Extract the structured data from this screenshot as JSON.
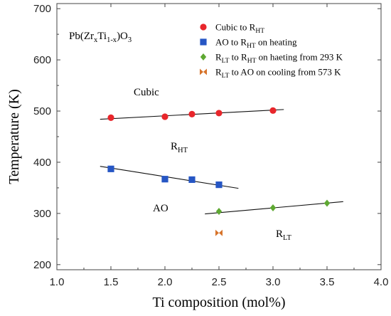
{
  "chart_data": {
    "type": "scatter",
    "title": "",
    "xlabel": "Ti composition (mol%)",
    "ylabel": "Temperature (K)",
    "xlim": [
      1.0,
      4.0
    ],
    "ylim": [
      190,
      710
    ],
    "x_ticks": [
      1.0,
      1.5,
      2.0,
      2.5,
      3.0,
      3.5,
      4.0
    ],
    "x_tick_labels": [
      "1.0",
      "1.5",
      "2.0",
      "2.5",
      "3.0",
      "3.5",
      "4.0"
    ],
    "y_ticks": [
      200,
      300,
      400,
      500,
      600,
      700
    ],
    "y_tick_labels": [
      "200",
      "300",
      "400",
      "500",
      "600",
      "700"
    ],
    "grid": false,
    "legend_position": "top-right",
    "series": [
      {
        "name": "Cubic to R_HT",
        "marker": "circle",
        "color": "#e8262b",
        "x": [
          1.5,
          2.0,
          2.25,
          2.5,
          3.0
        ],
        "y": [
          487,
          489,
          494,
          496,
          501
        ]
      },
      {
        "name": "AO to R_HT on heating",
        "marker": "square",
        "color": "#2656c4",
        "x": [
          1.5,
          2.0,
          2.25,
          2.5
        ],
        "y": [
          387,
          367,
          366,
          356
        ]
      },
      {
        "name": "R_LT to R_HT on haeting from 293 K",
        "marker": "diamond",
        "color": "#5ea832",
        "x": [
          2.5,
          3.0,
          3.5
        ],
        "y": [
          304,
          311,
          320
        ]
      },
      {
        "name": "R_LT to AO on cooling from 573 K",
        "marker": "bowtie",
        "color": "#d7742b",
        "x": [
          2.5
        ],
        "y": [
          262
        ]
      }
    ],
    "fit_lines": [
      {
        "x": [
          1.4,
          3.1
        ],
        "y": [
          484,
          503
        ]
      },
      {
        "x": [
          1.4,
          2.68
        ],
        "y": [
          392,
          349
        ]
      },
      {
        "x": [
          2.37,
          3.65
        ],
        "y": [
          299,
          323
        ]
      }
    ],
    "legend": [
      {
        "marker": "circle",
        "color": "#e8262b",
        "base": "Cubic to R",
        "sub": "HT",
        "rest": ""
      },
      {
        "marker": "square",
        "color": "#2656c4",
        "base": "AO to R",
        "sub": "HT",
        "rest": " on heating"
      },
      {
        "marker": "diamond",
        "color": "#5ea832",
        "base": "R",
        "sub": "LT",
        "rest": " to R",
        "sub2": "HT",
        "rest2": " on haeting from 293 K"
      },
      {
        "marker": "bowtie",
        "color": "#d7742b",
        "base": "R",
        "sub": "LT",
        "rest": " to AO on cooling from 573 K"
      }
    ],
    "annotations": {
      "formula": {
        "p1": "Pb(Zr",
        "s1": "x",
        "p2": "Ti",
        "s2": "1-x",
        "p3": ")O",
        "s3": "3"
      },
      "cubic": "Cubic",
      "rht": {
        "base": "R",
        "sub": "HT"
      },
      "ao": "AO",
      "rlt": {
        "base": "R",
        "sub": "LT"
      }
    }
  }
}
